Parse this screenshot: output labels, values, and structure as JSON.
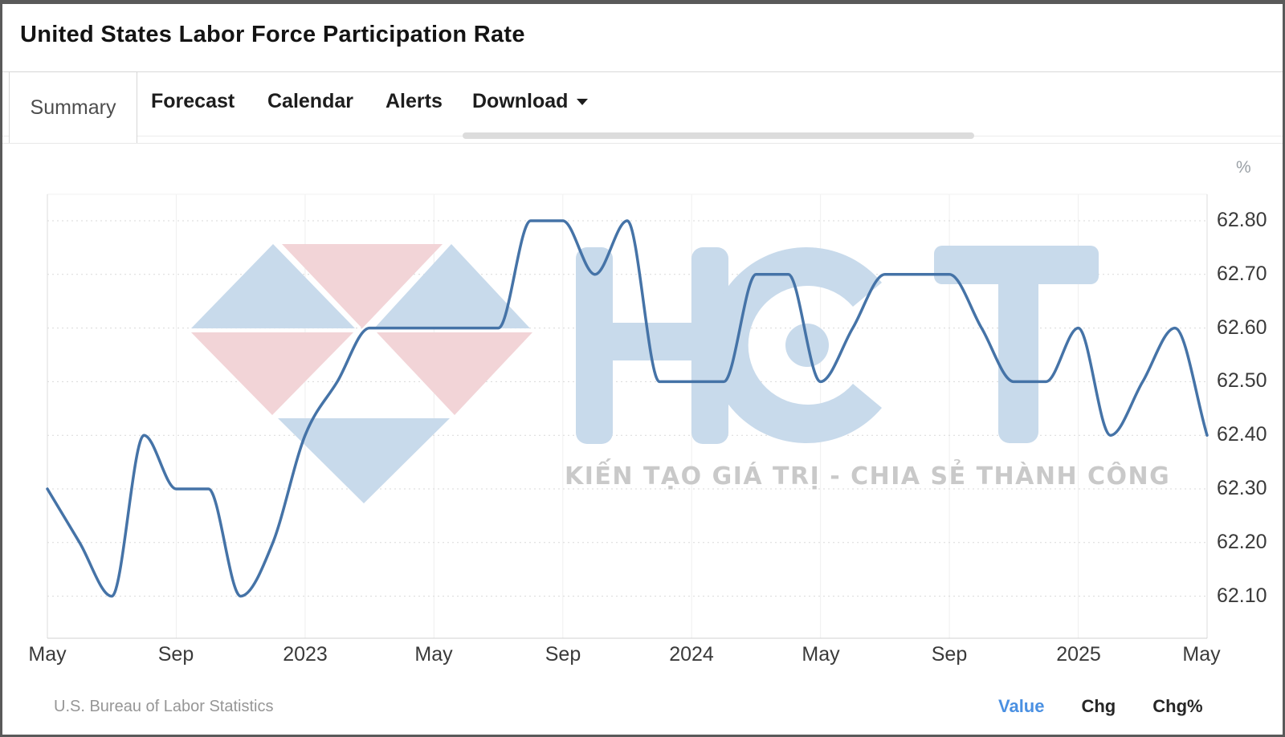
{
  "window": {
    "title": "United States Labor Force Participation Rate"
  },
  "tabs": [
    {
      "label": "Summary",
      "active": true
    },
    {
      "label": "Forecast",
      "active": false
    },
    {
      "label": "Calendar",
      "active": false
    },
    {
      "label": "Alerts",
      "active": false
    },
    {
      "label": "Download",
      "active": false,
      "has_menu": true
    }
  ],
  "icons": {
    "caret_down": "▾"
  },
  "chart_data": {
    "type": "line",
    "title": "United States Labor Force Participation Rate",
    "unit": "%",
    "y_axis_unit": "%",
    "source": "U.S. Bureau of Labor Statistics",
    "smoothing": "spline",
    "line_color": "#4573a7",
    "grid": {
      "horizontal": "dotted",
      "vertical": "solid"
    },
    "legend_position": "none",
    "ylim": [
      62.02,
      62.85
    ],
    "x": [
      "2022-05",
      "2022-06",
      "2022-07",
      "2022-08",
      "2022-09",
      "2022-10",
      "2022-11",
      "2022-12",
      "2023-01",
      "2023-02",
      "2023-03",
      "2023-04",
      "2023-05",
      "2023-06",
      "2023-07",
      "2023-08",
      "2023-09",
      "2023-10",
      "2023-11",
      "2023-12",
      "2024-01",
      "2024-02",
      "2024-03",
      "2024-04",
      "2024-05",
      "2024-06",
      "2024-07",
      "2024-08",
      "2024-09",
      "2024-10",
      "2024-11",
      "2024-12",
      "2025-01",
      "2025-02",
      "2025-03",
      "2025-04",
      "2025-05"
    ],
    "values": [
      62.3,
      62.2,
      62.1,
      62.4,
      62.3,
      62.3,
      62.1,
      62.2,
      62.4,
      62.5,
      62.6,
      62.6,
      62.6,
      62.6,
      62.6,
      62.8,
      62.8,
      62.7,
      62.8,
      62.5,
      62.5,
      62.5,
      62.7,
      62.7,
      62.5,
      62.6,
      62.7,
      62.7,
      62.7,
      62.6,
      62.5,
      62.5,
      62.6,
      62.4,
      62.5,
      62.6,
      62.4
    ],
    "x_tick_labels": [
      "May",
      "Sep",
      "2023",
      "May",
      "Sep",
      "2024",
      "May",
      "Sep",
      "2025",
      "May"
    ],
    "y_tick_labels": [
      "62.80",
      "62.70",
      "62.60",
      "62.50",
      "62.40",
      "62.30",
      "62.20",
      "62.10"
    ],
    "y_ticks": [
      62.8,
      62.7,
      62.6,
      62.5,
      62.4,
      62.3,
      62.2,
      62.1
    ]
  },
  "watermark": {
    "letters": "HCT",
    "slogan": "KIẾN TẠO GIÁ TRỊ - CHIA SẺ THÀNH CÔNG"
  },
  "footer": {
    "source": "U.S. Bureau of Labor Statistics",
    "range_buttons": [
      {
        "label": "Value",
        "active": true
      },
      {
        "label": "Chg",
        "active": false
      },
      {
        "label": "Chg%",
        "active": false
      }
    ]
  }
}
